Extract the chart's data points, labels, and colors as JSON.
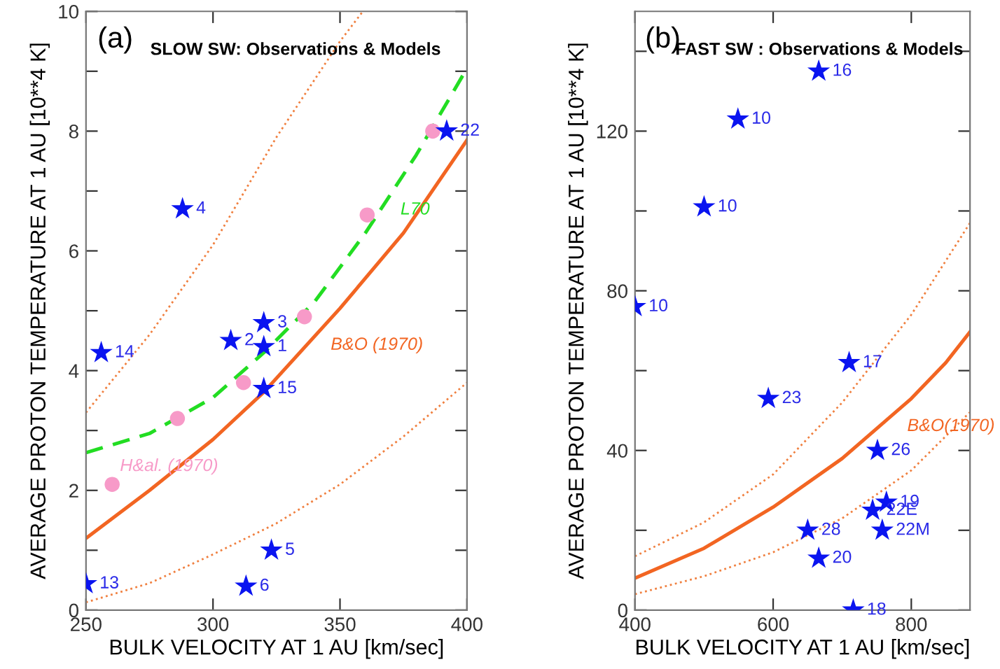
{
  "chart_data": [
    {
      "type": "scatter",
      "title": "(a)",
      "subtitle": "SLOW SW: Observations & Models",
      "xlabel": "BULK VELOCITY AT 1 AU [km/sec]",
      "ylabel": "AVERAGE PROTON TEMPERATURE AT 1 AU [10**4 K]",
      "xlim": [
        250,
        400
      ],
      "ylim": [
        0,
        10
      ],
      "xticks": [
        250,
        300,
        350,
        400
      ],
      "yticks": [
        0,
        {
          "value": 1,
          "label": null
        },
        2,
        {
          "value": 3,
          "label": null
        },
        4,
        {
          "value": 5,
          "label": null
        },
        6,
        {
          "value": 7,
          "label": null
        },
        8,
        {
          "value": 9,
          "label": null
        },
        10
      ],
      "series": [
        {
          "type": "line",
          "color": "#f08040",
          "line_style": "dotted",
          "marker": "none",
          "x": [
            250,
            275,
            300,
            325,
            350,
            359
          ],
          "values": [
            3.3,
            4.6,
            6.1,
            7.9,
            9.5,
            10
          ]
        },
        {
          "type": "line",
          "color": "#f08040",
          "line_style": "dotted",
          "marker": "none",
          "x": [
            250,
            275,
            300,
            325,
            350,
            375,
            400
          ],
          "values": [
            0.13,
            0.45,
            0.93,
            1.45,
            2.1,
            2.9,
            3.8
          ]
        },
        {
          "type": "line",
          "color": "#f26522",
          "line_style": "solid",
          "marker": "none",
          "x": [
            250,
            275,
            300,
            320,
            350,
            375,
            400
          ],
          "values": [
            1.2,
            2.0,
            2.85,
            3.64,
            5.04,
            6.3,
            7.85
          ]
        },
        {
          "type": "line",
          "color": "#22dd22",
          "line_style": "dashed",
          "marker": "none",
          "x": [
            250,
            275,
            300,
            320,
            340,
            360,
            380,
            400
          ],
          "values": [
            2.63,
            2.95,
            3.55,
            4.3,
            5.15,
            6.3,
            7.6,
            9.05
          ]
        },
        {
          "color": "#f79ac8",
          "marker": "circle",
          "x": [
            386.5,
            360.7,
            336,
            312,
            286,
            260.3
          ],
          "values": [
            8.0,
            6.6,
            4.9,
            3.8,
            3.2,
            2.1
          ]
        },
        {
          "color": "#0a14f0",
          "marker": "star",
          "x": [
            288,
            392,
            320,
            307,
            320,
            320,
            256,
            323,
            313,
            250
          ],
          "values": [
            6.7,
            8.0,
            4.8,
            4.5,
            4.4,
            3.7,
            4.3,
            1.0,
            0.4,
            0.44
          ]
        }
      ],
      "annotations": [
        {
          "text": "4",
          "x": 288,
          "y": 6.7
        },
        {
          "text": "22",
          "x": 392,
          "y": 8.0
        },
        {
          "text": "3",
          "x": 320,
          "y": 4.8
        },
        {
          "text": "2",
          "x": 307,
          "y": 4.5
        },
        {
          "text": "1",
          "x": 320,
          "y": 4.4
        },
        {
          "text": "15",
          "x": 320,
          "y": 3.7
        },
        {
          "text": "14",
          "x": 256,
          "y": 4.3
        },
        {
          "text": "5",
          "x": 323,
          "y": 1.0
        },
        {
          "text": "6",
          "x": 313,
          "y": 0.4
        },
        {
          "text": "13",
          "x": 250,
          "y": 0.44
        },
        {
          "text": "L70",
          "x": 370,
          "y": 6.95
        },
        {
          "text": "B&O (1970)",
          "x": 342.5,
          "y": 4.69
        },
        {
          "text": "H&al. (1970)",
          "x": 260.3,
          "y": 2.1
        }
      ]
    },
    {
      "type": "scatter",
      "title": "(b)",
      "subtitle": "FAST SW : Observations & Models",
      "xlabel": "BULK VELOCITY AT 1 AU [km/sec]",
      "ylabel": "AVERAGE PROTON TEMPERATURE AT 1 AU [10**4 K]",
      "xlim": [
        400,
        885
      ],
      "ylim": [
        0,
        150
      ],
      "xticks": [
        400,
        600,
        800
      ],
      "yticks": [
        0,
        {
          "value": 20,
          "label": null
        },
        40,
        {
          "value": 60,
          "label": null
        },
        80,
        {
          "value": 100,
          "label": null
        },
        120,
        {
          "value": 140,
          "label": null
        }
      ],
      "series": [
        {
          "type": "line",
          "color": "#f08040",
          "line_style": "dotted",
          "marker": "none",
          "x": [
            400,
            500,
            600,
            700,
            800,
            885
          ],
          "values": [
            13.5,
            22,
            34,
            52,
            74,
            97
          ]
        },
        {
          "type": "line",
          "color": "#f08040",
          "line_style": "dotted",
          "marker": "none",
          "x": [
            400,
            500,
            600,
            700,
            800,
            885
          ],
          "values": [
            4,
            8.5,
            14.5,
            23,
            35,
            49.6
          ]
        },
        {
          "type": "line",
          "color": "#f26522",
          "line_style": "solid",
          "marker": "none",
          "x": [
            400,
            500,
            600,
            700,
            750,
            800,
            850,
            885
          ],
          "values": [
            8,
            15.5,
            25.8,
            38,
            45.5,
            53,
            62,
            69.7
          ]
        },
        {
          "color": "#0a14f0",
          "marker": "star",
          "x": [
            666,
            549,
            500,
            400,
            710,
            593,
            751,
            764,
            744,
            758,
            650,
            666,
            716
          ],
          "values": [
            135,
            123,
            101,
            76,
            62,
            53,
            40,
            27,
            25,
            20,
            20,
            13,
            0
          ]
        }
      ],
      "annotations": [
        {
          "text": "16",
          "x": 666,
          "y": 135
        },
        {
          "text": "10",
          "x": 549,
          "y": 123
        },
        {
          "text": "10",
          "x": 500,
          "y": 101
        },
        {
          "text": "10",
          "x": 400,
          "y": 76
        },
        {
          "text": "17",
          "x": 710,
          "y": 62
        },
        {
          "text": "23",
          "x": 593,
          "y": 53
        },
        {
          "text": "26",
          "x": 751,
          "y": 40
        },
        {
          "text": "19",
          "x": 764,
          "y": 27
        },
        {
          "text": "22E",
          "x": 744,
          "y": 25
        },
        {
          "text": "22M",
          "x": 758,
          "y": 20
        },
        {
          "text": "28",
          "x": 650,
          "y": 20
        },
        {
          "text": "20",
          "x": 666,
          "y": 13
        },
        {
          "text": "18",
          "x": 716,
          "y": 0
        },
        {
          "text": "B&O(1970)",
          "x": 780,
          "y": 50
        }
      ]
    }
  ]
}
